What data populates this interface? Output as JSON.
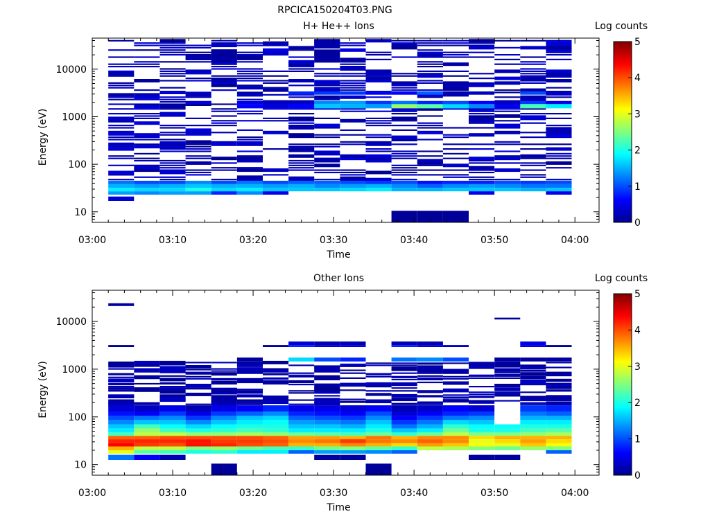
{
  "figure_title": "RPCICA150204T03.PNG",
  "chart_data": [
    {
      "type": "heatmap",
      "title": "H+ He++ Ions",
      "xlabel": "Time",
      "ylabel": "Energy (eV)",
      "x_ticks": [
        "03:00",
        "03:10",
        "03:20",
        "03:30",
        "03:40",
        "03:50",
        "04:00"
      ],
      "xlim": [
        "03:00",
        "04:03"
      ],
      "y_scale": "log",
      "y_ticks": [
        10,
        100,
        1000,
        10000
      ],
      "y_tick_labels": [
        "10",
        "100",
        "1000",
        "10000"
      ],
      "ylim": [
        6,
        45000
      ],
      "colorbar": {
        "label": "Log counts",
        "range": [
          0,
          5
        ],
        "ticks": [
          "0",
          "1",
          "2",
          "3",
          "4",
          "5"
        ]
      },
      "grid": false,
      "columns_start": "03:02",
      "column_width_minutes": 3.2,
      "dense_rows": [
        {
          "e": [
            38,
            45
          ],
          "v": [
            1.2,
            1.0,
            1.0,
            1.3,
            1.0,
            1.2,
            1.0,
            1.1,
            1.1,
            1.0,
            0.9,
            1.0,
            0.7,
            0.8,
            0.8,
            1.0,
            0.9,
            1.0
          ]
        },
        {
          "e": [
            32,
            38
          ],
          "v": [
            1.5,
            1.4,
            1.5,
            1.6,
            1.5,
            1.5,
            1.4,
            1.5,
            1.3,
            1.4,
            1.5,
            1.3,
            1.1,
            1.3,
            1.4,
            1.3,
            1.2,
            1.2
          ]
        },
        {
          "e": [
            27,
            32
          ],
          "v": [
            1.8,
            1.7,
            1.7,
            2.0,
            1.7,
            1.8,
            1.6,
            1.6,
            1.6,
            1.7,
            1.8,
            1.5,
            1.5,
            1.6,
            1.6,
            1.6,
            1.5,
            1.6
          ]
        },
        {
          "e": [
            23,
            27
          ],
          "v": [
            1.4,
            1.3,
            1.4,
            1.4,
            0.8,
            1.3,
            0.5,
            0.0,
            0.0,
            0.0,
            0.0,
            0.0,
            0.0,
            0.0,
            0.5,
            0.0,
            0.0,
            0.5
          ]
        },
        {
          "e": [
            17,
            21
          ],
          "v": [
            0.4,
            0,
            0,
            0,
            0,
            0,
            0,
            0,
            0,
            0,
            0,
            0,
            0,
            0,
            0,
            0,
            0,
            0
          ]
        },
        {
          "e": [
            6,
            10.5
          ],
          "v": [
            0,
            0,
            0,
            0,
            0,
            0,
            0,
            0,
            0,
            0,
            0,
            0.05,
            0.05,
            0.05,
            0,
            0,
            0,
            0
          ]
        },
        {
          "e": [
            1500,
            1850
          ],
          "v": [
            0,
            0,
            0,
            0,
            0,
            0.6,
            0.4,
            0.6,
            1.6,
            1.5,
            1.4,
            2.6,
            2.3,
            1.7,
            1.3,
            0.5,
            2.2,
            1.8
          ]
        },
        {
          "e": [
            1850,
            2150
          ],
          "v": [
            0,
            0,
            0,
            0.4,
            0,
            0.5,
            0.3,
            0.3,
            1.3,
            1.4,
            0.9,
            1.2,
            0.8,
            1.0,
            0.6,
            0.3,
            0.9,
            0.5
          ]
        },
        {
          "e": [
            2900,
            3400
          ],
          "v": [
            0,
            0,
            0,
            0,
            0,
            0,
            0,
            0.8,
            0.9,
            0.9,
            0.6,
            0.6,
            1.1,
            0.2,
            0.3,
            0,
            1.0,
            0.3
          ]
        },
        {
          "e": [
            14000,
            26000
          ],
          "v": [
            0,
            0,
            0,
            0,
            0.1,
            0,
            0,
            0,
            0.1,
            0,
            0,
            0,
            0,
            0,
            0,
            0,
            0,
            0
          ]
        },
        {
          "e": [
            28000,
            42000
          ],
          "v": [
            0,
            0,
            0,
            0,
            0,
            0,
            0,
            0,
            0.15,
            0,
            0,
            0,
            0,
            0,
            0,
            0,
            0,
            0
          ]
        }
      ],
      "scatter": {
        "emin": 45,
        "emax": 42000,
        "density": 0.52,
        "vmax": 0.45,
        "seed": 7
      }
    },
    {
      "type": "heatmap",
      "title": "Other Ions",
      "xlabel": "Time",
      "ylabel": "Energy (eV)",
      "x_ticks": [
        "03:00",
        "03:10",
        "03:20",
        "03:30",
        "03:40",
        "03:50",
        "04:00"
      ],
      "xlim": [
        "03:00",
        "04:03"
      ],
      "y_scale": "log",
      "y_ticks": [
        10,
        100,
        1000,
        10000
      ],
      "y_tick_labels": [
        "10",
        "100",
        "1000",
        "10000"
      ],
      "ylim": [
        6,
        45000
      ],
      "colorbar": {
        "label": "Log counts",
        "range": [
          0,
          5
        ],
        "ticks": [
          "0",
          "1",
          "2",
          "3",
          "4",
          "5"
        ]
      },
      "grid": false,
      "columns_start": "03:02",
      "column_width_minutes": 3.2,
      "dense_rows": [
        {
          "e": [
            130,
            175
          ],
          "v": [
            0.4,
            0.3,
            0.5,
            0.2,
            0.5,
            0.6,
            0.8,
            0.5,
            0.5,
            0.4,
            0.6,
            0.2,
            0.3,
            0.6,
            0.4,
            0,
            0.9,
            0.8
          ]
        },
        {
          "e": [
            105,
            130
          ],
          "v": [
            0.7,
            0.6,
            0.9,
            0.5,
            0.9,
            1.1,
            1.3,
            0.8,
            0.7,
            0.6,
            1.0,
            0.4,
            0.6,
            0.8,
            0.9,
            0,
            1.2,
            1.1
          ]
        },
        {
          "e": [
            86,
            105
          ],
          "v": [
            1.0,
            1.2,
            1.3,
            0.9,
            1.3,
            1.6,
            1.7,
            1.1,
            1.0,
            0.9,
            1.3,
            0.6,
            0.9,
            1.2,
            1.3,
            0,
            1.5,
            1.5
          ]
        },
        {
          "e": [
            70,
            86
          ],
          "v": [
            1.3,
            1.6,
            1.6,
            1.3,
            1.6,
            1.8,
            1.9,
            1.4,
            1.3,
            1.2,
            1.6,
            0.9,
            1.2,
            1.7,
            1.6,
            0,
            1.8,
            1.8
          ]
        },
        {
          "e": [
            57,
            70
          ],
          "v": [
            1.6,
            2.2,
            1.9,
            1.7,
            1.9,
            2.0,
            2.0,
            1.6,
            1.6,
            1.5,
            1.8,
            1.2,
            1.5,
            2.1,
            1.9,
            1.9,
            2.0,
            2.0
          ]
        },
        {
          "e": [
            47,
            57
          ],
          "v": [
            1.8,
            2.6,
            2.2,
            2.0,
            2.1,
            2.2,
            2.1,
            1.8,
            1.8,
            1.8,
            2.0,
            1.6,
            1.8,
            2.4,
            2.0,
            2.0,
            2.2,
            2.3
          ]
        },
        {
          "e": [
            40,
            47
          ],
          "v": [
            2.2,
            2.8,
            2.8,
            2.6,
            2.6,
            2.7,
            2.6,
            2.4,
            2.3,
            2.2,
            2.4,
            2.1,
            2.4,
            2.8,
            2.5,
            2.5,
            2.6,
            2.7
          ]
        },
        {
          "e": [
            34,
            40
          ],
          "v": [
            3.9,
            3.9,
            4.0,
            4.0,
            4.0,
            4.0,
            3.9,
            3.6,
            3.6,
            3.5,
            3.8,
            3.5,
            3.7,
            3.7,
            3.3,
            3.5,
            3.5,
            3.5
          ]
        },
        {
          "e": [
            28,
            34
          ],
          "v": [
            4.2,
            4.2,
            4.2,
            4.3,
            4.1,
            4.1,
            4.0,
            3.7,
            3.8,
            4.1,
            3.8,
            3.7,
            3.9,
            3.7,
            3.0,
            3.3,
            3.6,
            3.3
          ]
        },
        {
          "e": [
            24,
            28
          ],
          "v": [
            4.4,
            4.1,
            4.0,
            4.3,
            4.2,
            4.0,
            3.9,
            3.5,
            3.5,
            3.7,
            3.5,
            3.3,
            3.6,
            3.4,
            3.1,
            3.0,
            3.4,
            3.1
          ]
        },
        {
          "e": [
            20,
            24
          ],
          "v": [
            3.5,
            2.8,
            2.8,
            2.5,
            2.6,
            2.4,
            2.2,
            2.1,
            2.4,
            2.5,
            2.3,
            2.1,
            2.8,
            2.7,
            2.5,
            2.4,
            2.6,
            2.5
          ]
        },
        {
          "e": [
            17,
            20
          ],
          "v": [
            3.0,
            2.3,
            2.2,
            2.0,
            2.1,
            1.8,
            1.8,
            1.1,
            1.4,
            1.4,
            1.3,
            1.1,
            0,
            0,
            0,
            0,
            0,
            1.1
          ]
        },
        {
          "e": [
            12.5,
            16
          ],
          "v": [
            1.2,
            0.6,
            0.2,
            0,
            0,
            0,
            0,
            0,
            0.1,
            0.1,
            0,
            0,
            0,
            0,
            0.1,
            0.1,
            0,
            0
          ]
        },
        {
          "e": [
            6,
            10.5
          ],
          "v": [
            0,
            0,
            0,
            0,
            0.05,
            0,
            0,
            0,
            0,
            0,
            0.05,
            0,
            0,
            0,
            0,
            0,
            0,
            0
          ]
        },
        {
          "e": [
            1450,
            1750
          ],
          "v": [
            0,
            0,
            0,
            0,
            0,
            0.1,
            0,
            1.7,
            1.0,
            0.8,
            0,
            1.2,
            1.3,
            1.0,
            0,
            0.1,
            0.1,
            0.1
          ]
        },
        {
          "e": [
            2900,
            3200
          ],
          "v": [
            0.05,
            0,
            0,
            0,
            0,
            0,
            0.1,
            0.8,
            0.4,
            0.5,
            0,
            0.8,
            0.4,
            0.3,
            0,
            0,
            0.4,
            0.1
          ]
        },
        {
          "e": [
            3200,
            3800
          ],
          "v": [
            0,
            0,
            0,
            0,
            0,
            0,
            0,
            0.4,
            0.2,
            0.2,
            0,
            0.2,
            0.2,
            0,
            0,
            0,
            0.5,
            0
          ]
        },
        {
          "e": [
            21000,
            24000
          ],
          "v": [
            0.1,
            0,
            0,
            0,
            0,
            0,
            0,
            0,
            0,
            0,
            0,
            0,
            0,
            0,
            0,
            0,
            0,
            0
          ]
        },
        {
          "e": [
            11000,
            12000
          ],
          "v": [
            0,
            0,
            0,
            0,
            0,
            0,
            0,
            0,
            0,
            0,
            0,
            0,
            0,
            0,
            0,
            0.1,
            0,
            0
          ]
        }
      ],
      "scatter": {
        "emin": 180,
        "emax": 1400,
        "density": 0.3,
        "vmax": 0.3,
        "seed": 19
      }
    }
  ]
}
